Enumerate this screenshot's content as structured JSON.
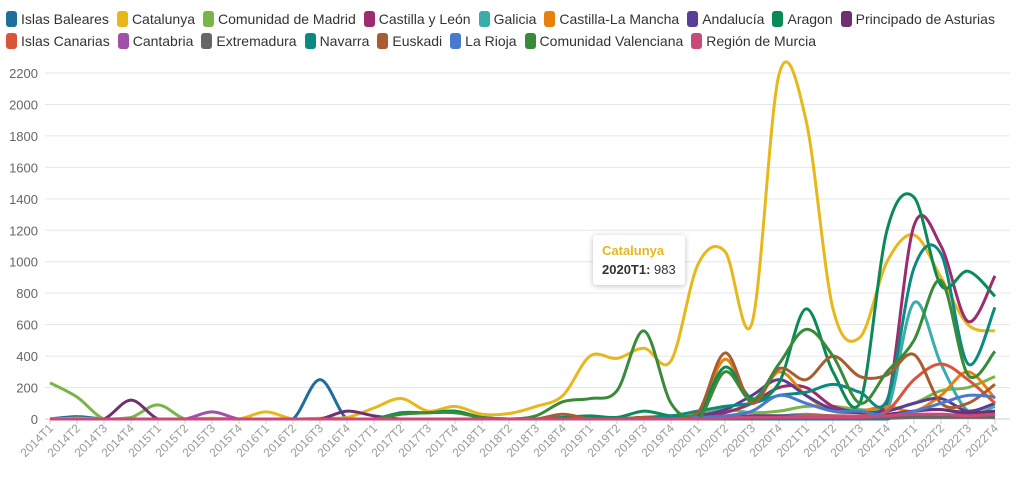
{
  "chart_data": {
    "type": "line",
    "title": "",
    "xlabel": "",
    "ylabel": "",
    "ylim": [
      0,
      2200
    ],
    "yticks": [
      0,
      200,
      400,
      600,
      800,
      1000,
      1200,
      1400,
      1600,
      1800,
      2000,
      2200
    ],
    "grid": true,
    "legend_placement": "top",
    "categories": [
      "2014T1",
      "2014T2",
      "2014T3",
      "2014T4",
      "2015T1",
      "2015T2",
      "2015T3",
      "2015T4",
      "2016T1",
      "2016T2",
      "2016T3",
      "2016T4",
      "2017T1",
      "2017T2",
      "2017T3",
      "2017T4",
      "2018T1",
      "2018T2",
      "2018T3",
      "2018T4",
      "2019T1",
      "2019T2",
      "2019T3",
      "2019T4",
      "2020T1",
      "2020T2",
      "2020T3",
      "2020T4",
      "2021T1",
      "2021T2",
      "2021T3",
      "2021T4",
      "2022T1",
      "2022T2",
      "2022T3",
      "2022T4"
    ],
    "series": [
      {
        "name": "Islas Baleares",
        "color": "#1f6e9c",
        "values": [
          0,
          15,
          0,
          0,
          0,
          0,
          0,
          0,
          0,
          0,
          250,
          0,
          0,
          0,
          0,
          0,
          0,
          0,
          0,
          0,
          0,
          0,
          0,
          0,
          0,
          0,
          0,
          0,
          0,
          0,
          0,
          0,
          50,
          60,
          30,
          40
        ]
      },
      {
        "name": "Catalunya",
        "color": "#e8b71a",
        "values": [
          0,
          5,
          0,
          0,
          0,
          0,
          5,
          0,
          45,
          0,
          5,
          10,
          70,
          130,
          50,
          80,
          30,
          35,
          80,
          150,
          400,
          385,
          450,
          370,
          983,
          1065,
          610,
          2190,
          1900,
          700,
          520,
          1000,
          1170,
          900,
          600,
          560
        ]
      },
      {
        "name": "Comunidad de Madrid",
        "color": "#78b54a",
        "values": [
          230,
          140,
          0,
          10,
          90,
          0,
          0,
          0,
          0,
          0,
          0,
          0,
          0,
          0,
          0,
          0,
          0,
          0,
          0,
          0,
          0,
          0,
          0,
          20,
          30,
          60,
          40,
          50,
          80,
          80,
          60,
          60,
          100,
          180,
          200,
          270
        ]
      },
      {
        "name": "Castilla y León",
        "color": "#9c2c6e",
        "values": [
          0,
          0,
          0,
          0,
          0,
          0,
          0,
          0,
          0,
          0,
          0,
          0,
          0,
          0,
          0,
          0,
          0,
          0,
          0,
          0,
          0,
          0,
          0,
          0,
          10,
          40,
          100,
          200,
          200,
          80,
          50,
          100,
          1230,
          1100,
          620,
          910
        ]
      },
      {
        "name": "Galicia",
        "color": "#3aadaa",
        "values": [
          0,
          0,
          0,
          0,
          0,
          0,
          0,
          0,
          0,
          0,
          0,
          0,
          0,
          0,
          0,
          0,
          0,
          0,
          0,
          0,
          0,
          0,
          0,
          0,
          0,
          10,
          20,
          20,
          30,
          20,
          20,
          50,
          740,
          350,
          50,
          80
        ]
      },
      {
        "name": "Castilla-La Mancha",
        "color": "#e8800e",
        "values": [
          0,
          0,
          0,
          0,
          0,
          0,
          0,
          0,
          0,
          0,
          0,
          0,
          0,
          0,
          0,
          0,
          0,
          0,
          0,
          0,
          0,
          0,
          10,
          20,
          30,
          380,
          100,
          300,
          150,
          50,
          50,
          80,
          50,
          150,
          300,
          130
        ]
      },
      {
        "name": "Andalucía",
        "color": "#5a3d96",
        "values": [
          0,
          0,
          0,
          0,
          0,
          0,
          0,
          0,
          0,
          0,
          0,
          0,
          0,
          0,
          0,
          0,
          0,
          0,
          0,
          0,
          0,
          0,
          10,
          10,
          20,
          60,
          150,
          250,
          150,
          60,
          40,
          50,
          100,
          130,
          50,
          100
        ]
      },
      {
        "name": "Aragon",
        "color": "#0a8a55",
        "values": [
          0,
          0,
          0,
          0,
          0,
          0,
          0,
          0,
          0,
          0,
          0,
          0,
          0,
          40,
          40,
          50,
          10,
          0,
          0,
          10,
          20,
          10,
          50,
          20,
          30,
          330,
          130,
          230,
          700,
          300,
          100,
          1200,
          1410,
          850,
          940,
          780
        ]
      },
      {
        "name": "Principado de Asturias",
        "color": "#6e3070",
        "values": [
          0,
          0,
          0,
          120,
          0,
          0,
          0,
          0,
          0,
          0,
          0,
          50,
          20,
          0,
          0,
          0,
          0,
          0,
          0,
          0,
          0,
          0,
          0,
          0,
          0,
          10,
          20,
          20,
          20,
          20,
          20,
          30,
          50,
          60,
          40,
          50
        ]
      },
      {
        "name": "Islas Canarias",
        "color": "#d9553a",
        "values": [
          0,
          0,
          0,
          0,
          0,
          0,
          0,
          0,
          0,
          0,
          0,
          0,
          0,
          0,
          0,
          0,
          0,
          0,
          0,
          0,
          0,
          0,
          0,
          0,
          0,
          10,
          10,
          10,
          20,
          20,
          20,
          50,
          250,
          350,
          250,
          100
        ]
      },
      {
        "name": "Cantabria",
        "color": "#a050a8",
        "values": [
          0,
          0,
          0,
          0,
          0,
          0,
          45,
          0,
          0,
          0,
          0,
          0,
          0,
          0,
          0,
          0,
          0,
          0,
          0,
          0,
          0,
          0,
          0,
          0,
          0,
          10,
          10,
          10,
          10,
          10,
          10,
          10,
          20,
          30,
          20,
          30
        ]
      },
      {
        "name": "Extremadura",
        "color": "#666666",
        "values": [
          0,
          0,
          0,
          0,
          0,
          0,
          0,
          0,
          0,
          0,
          0,
          0,
          0,
          0,
          0,
          0,
          0,
          0,
          0,
          0,
          0,
          0,
          0,
          0,
          0,
          0,
          0,
          5,
          5,
          5,
          5,
          5,
          10,
          10,
          10,
          10
        ]
      },
      {
        "name": "Navarra",
        "color": "#0a8a80",
        "values": [
          0,
          0,
          0,
          0,
          0,
          0,
          0,
          0,
          0,
          0,
          0,
          0,
          0,
          0,
          0,
          0,
          0,
          0,
          0,
          0,
          0,
          0,
          10,
          20,
          50,
          80,
          100,
          150,
          170,
          220,
          170,
          120,
          960,
          1050,
          350,
          710
        ]
      },
      {
        "name": "Euskadi",
        "color": "#a85c30",
        "values": [
          0,
          0,
          0,
          0,
          0,
          0,
          0,
          0,
          0,
          0,
          0,
          0,
          0,
          0,
          0,
          0,
          0,
          0,
          0,
          30,
          0,
          0,
          10,
          0,
          40,
          420,
          100,
          320,
          250,
          400,
          270,
          280,
          410,
          100,
          100,
          220
        ]
      },
      {
        "name": "La Rioja",
        "color": "#4a7ad0",
        "values": [
          0,
          0,
          0,
          0,
          0,
          0,
          0,
          0,
          0,
          0,
          0,
          0,
          0,
          0,
          0,
          0,
          0,
          0,
          0,
          0,
          0,
          0,
          0,
          0,
          10,
          20,
          50,
          150,
          100,
          50,
          50,
          20,
          50,
          100,
          150,
          140
        ]
      },
      {
        "name": "Comunidad Valenciana",
        "color": "#3a8a3a",
        "values": [
          0,
          0,
          0,
          0,
          0,
          0,
          0,
          0,
          0,
          0,
          0,
          0,
          0,
          30,
          40,
          40,
          10,
          0,
          20,
          110,
          130,
          180,
          560,
          100,
          0,
          300,
          120,
          350,
          570,
          400,
          100,
          300,
          500,
          880,
          280,
          430
        ]
      },
      {
        "name": "Región de Murcia",
        "color": "#c84a7a",
        "values": [
          0,
          0,
          0,
          0,
          0,
          0,
          0,
          0,
          0,
          0,
          0,
          0,
          0,
          0,
          0,
          0,
          0,
          0,
          0,
          0,
          0,
          0,
          0,
          0,
          0,
          5,
          10,
          10,
          10,
          10,
          10,
          20,
          30,
          30,
          20,
          30
        ]
      }
    ],
    "tooltip": {
      "series": "Catalunya",
      "label": "2020T1:",
      "value": "983"
    }
  }
}
